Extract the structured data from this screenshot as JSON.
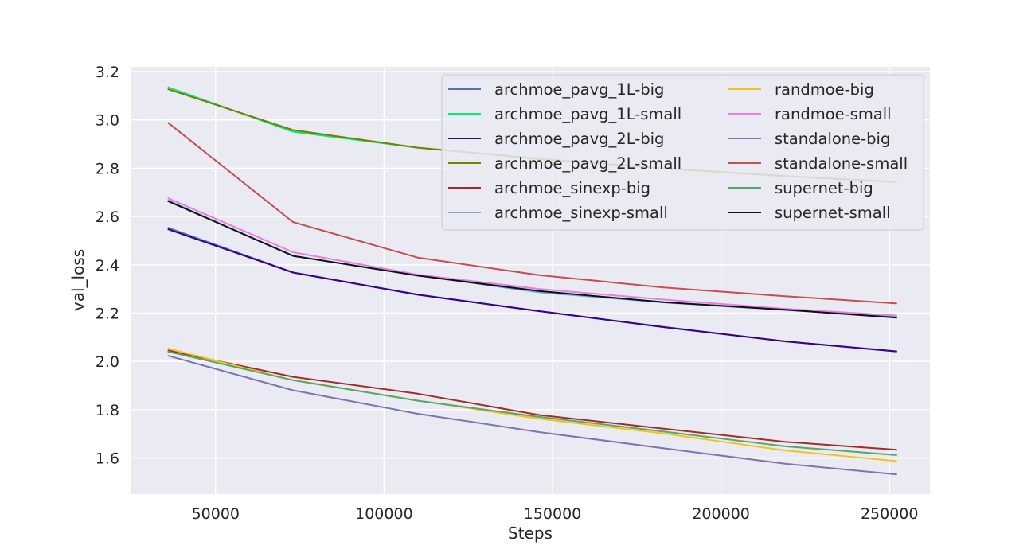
{
  "chart_data": {
    "type": "line",
    "title": "",
    "xlabel": "Steps",
    "ylabel": "val_loss",
    "xlim": [
      25000,
      262000
    ],
    "ylim": [
      1.45,
      3.22
    ],
    "xticks": [
      50000,
      100000,
      150000,
      200000,
      250000
    ],
    "xtick_labels": [
      "50000",
      "100000",
      "150000",
      "200000",
      "250000"
    ],
    "yticks": [
      1.6,
      1.8,
      2.0,
      2.2,
      2.4,
      2.6,
      2.8,
      3.0,
      3.2
    ],
    "ytick_labels": [
      "1.6",
      "1.8",
      "2.0",
      "2.2",
      "2.4",
      "2.6",
      "2.8",
      "3.0",
      "3.2"
    ],
    "grid": true,
    "legend_position": "top-right",
    "series": [
      {
        "name": "archmoe_pavg_1L-big",
        "color": "#4c72b0",
        "x": [
          36000,
          73000,
          110000,
          146000,
          183000,
          219000,
          252000
        ],
        "y": [
          2.553,
          2.368,
          2.277,
          2.208,
          2.143,
          2.083,
          2.042
        ]
      },
      {
        "name": "archmoe_pavg_1L-small",
        "color": "#00ee6e",
        "x": [
          36000,
          73000,
          110000,
          146000,
          183000,
          219000,
          252000
        ],
        "y": [
          3.135,
          2.951,
          2.885,
          2.84,
          2.8,
          2.768,
          2.744
        ]
      },
      {
        "name": "archmoe_pavg_2L-big",
        "color": "#3a0087",
        "x": [
          36000,
          73000,
          110000,
          146000,
          183000,
          219000,
          252000
        ],
        "y": [
          2.547,
          2.368,
          2.276,
          2.208,
          2.142,
          2.083,
          2.041
        ]
      },
      {
        "name": "archmoe_pavg_2L-small",
        "color": "#778000",
        "x": [
          36000,
          73000,
          110000,
          146000,
          183000,
          219000,
          252000
        ],
        "y": [
          3.127,
          2.958,
          2.885,
          2.838,
          2.799,
          2.767,
          2.743
        ]
      },
      {
        "name": "archmoe_sinexp-big",
        "color": "#a52a2a",
        "x": [
          36000,
          73000,
          110000,
          146000,
          183000,
          219000,
          252000
        ],
        "y": [
          2.045,
          1.936,
          1.866,
          1.778,
          1.721,
          1.667,
          1.634
        ]
      },
      {
        "name": "archmoe_sinexp-small",
        "color": "#6bafd6",
        "x": [
          36000,
          73000,
          110000,
          146000,
          183000,
          219000,
          252000
        ],
        "y": [
          2.666,
          2.437,
          2.357,
          2.286,
          2.244,
          2.213,
          2.184
        ]
      },
      {
        "name": "randmoe-big",
        "color": "#f0c419",
        "x": [
          36000,
          73000,
          110000,
          146000,
          183000,
          219000,
          252000
        ],
        "y": [
          2.053,
          1.922,
          1.838,
          1.762,
          1.701,
          1.631,
          1.587
        ]
      },
      {
        "name": "randmoe-small",
        "color": "#e67ee6",
        "x": [
          36000,
          73000,
          110000,
          146000,
          183000,
          219000,
          252000
        ],
        "y": [
          2.675,
          2.452,
          2.359,
          2.3,
          2.256,
          2.218,
          2.19
        ]
      },
      {
        "name": "standalone-big",
        "color": "#8172b3",
        "x": [
          36000,
          73000,
          110000,
          146000,
          183000,
          219000,
          252000
        ],
        "y": [
          2.023,
          1.88,
          1.783,
          1.707,
          1.64,
          1.576,
          1.532
        ]
      },
      {
        "name": "standalone-small",
        "color": "#c44e52",
        "x": [
          36000,
          73000,
          110000,
          146000,
          183000,
          219000,
          252000
        ],
        "y": [
          2.987,
          2.577,
          2.43,
          2.357,
          2.306,
          2.27,
          2.24
        ]
      },
      {
        "name": "supernet-big",
        "color": "#55a868",
        "x": [
          36000,
          73000,
          110000,
          146000,
          183000,
          219000,
          252000
        ],
        "y": [
          2.04,
          1.922,
          1.837,
          1.77,
          1.709,
          1.648,
          1.612
        ]
      },
      {
        "name": "supernet-small",
        "color": "#111111",
        "x": [
          36000,
          73000,
          110000,
          146000,
          183000,
          219000,
          252000
        ],
        "y": [
          2.663,
          2.437,
          2.355,
          2.291,
          2.245,
          2.214,
          2.181
        ]
      }
    ]
  }
}
